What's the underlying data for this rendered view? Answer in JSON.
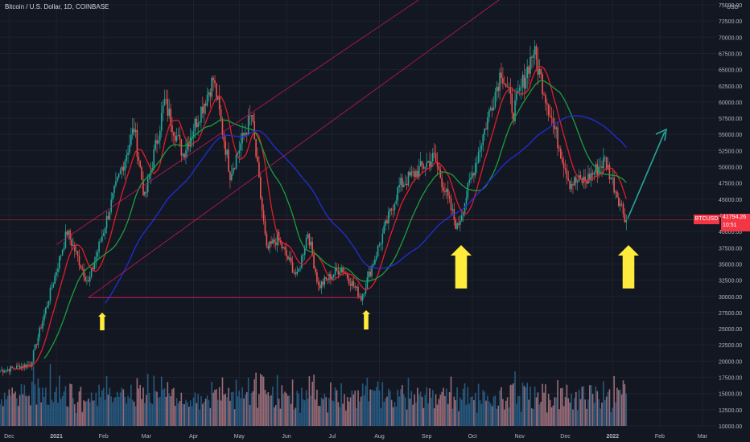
{
  "header": {
    "title": "Bitcoin / U.S. Dollar, 1D, COINBASE"
  },
  "axis": {
    "currency": "USD",
    "y_ticks": [
      "75000.00",
      "72500.00",
      "70000.00",
      "67500.00",
      "65000.00",
      "62500.00",
      "60000.00",
      "57500.00",
      "55000.00",
      "52500.00",
      "50000.00",
      "47500.00",
      "45000.00",
      "42500.00",
      "40000.00",
      "37500.00",
      "35000.00",
      "32500.00",
      "30000.00",
      "27500.00",
      "25000.00",
      "22500.00",
      "20000.00",
      "17500.00",
      "15000.00",
      "12500.00",
      "10000.00"
    ],
    "x_ticks": [
      "Dec",
      "2021",
      "Feb",
      "Mar",
      "Apr",
      "May",
      "Jun",
      "Jul",
      "Aug",
      "Sep",
      "Oct",
      "Nov",
      "Dec",
      "2022",
      "Feb",
      "Mar"
    ]
  },
  "last_price": {
    "symbol": "BTCUSD",
    "value": "41794.26",
    "countdown": "10:51"
  },
  "colors": {
    "up": "#26a69a",
    "down": "#ef5350",
    "ma_fast": "#e11d2a",
    "ma_mid": "#1b9e3e",
    "ma_slow": "#1f2fd6",
    "trend": "#c2185b",
    "arrow": "#ffeb3b",
    "projection": "#26a69a"
  },
  "chart_data": {
    "type": "candlestick",
    "title": "Bitcoin / U.S. Dollar, 1D, COINBASE",
    "ylim": [
      10000,
      75000
    ],
    "x_range": [
      "2020-11-25",
      "2022-03-10"
    ],
    "price_path": [
      [
        "2020-11-25",
        18500
      ],
      [
        "2020-12-15",
        19500
      ],
      [
        "2021-01-08",
        40000
      ],
      [
        "2021-01-22",
        32000
      ],
      [
        "2021-02-08",
        46000
      ],
      [
        "2021-02-21",
        56000
      ],
      [
        "2021-02-28",
        45000
      ],
      [
        "2021-03-13",
        60000
      ],
      [
        "2021-03-25",
        52000
      ],
      [
        "2021-04-14",
        63500
      ],
      [
        "2021-04-25",
        49000
      ],
      [
        "2021-05-09",
        58000
      ],
      [
        "2021-05-19",
        37000
      ],
      [
        "2021-05-26",
        39000
      ],
      [
        "2021-06-08",
        33000
      ],
      [
        "2021-06-15",
        40000
      ],
      [
        "2021-06-22",
        31500
      ],
      [
        "2021-07-07",
        34500
      ],
      [
        "2021-07-20",
        29800
      ],
      [
        "2021-08-14",
        47000
      ],
      [
        "2021-09-06",
        51500
      ],
      [
        "2021-09-21",
        40500
      ],
      [
        "2021-10-20",
        65000
      ],
      [
        "2021-10-28",
        58500
      ],
      [
        "2021-11-10",
        68000
      ],
      [
        "2021-11-26",
        54000
      ],
      [
        "2021-12-04",
        47500
      ],
      [
        "2021-12-15",
        48000
      ],
      [
        "2021-12-27",
        51000
      ],
      [
        "2022-01-10",
        41794.26
      ]
    ],
    "horizontal_level": 29800,
    "annotations": [
      "support arrows",
      "projected rebound arrow"
    ]
  }
}
